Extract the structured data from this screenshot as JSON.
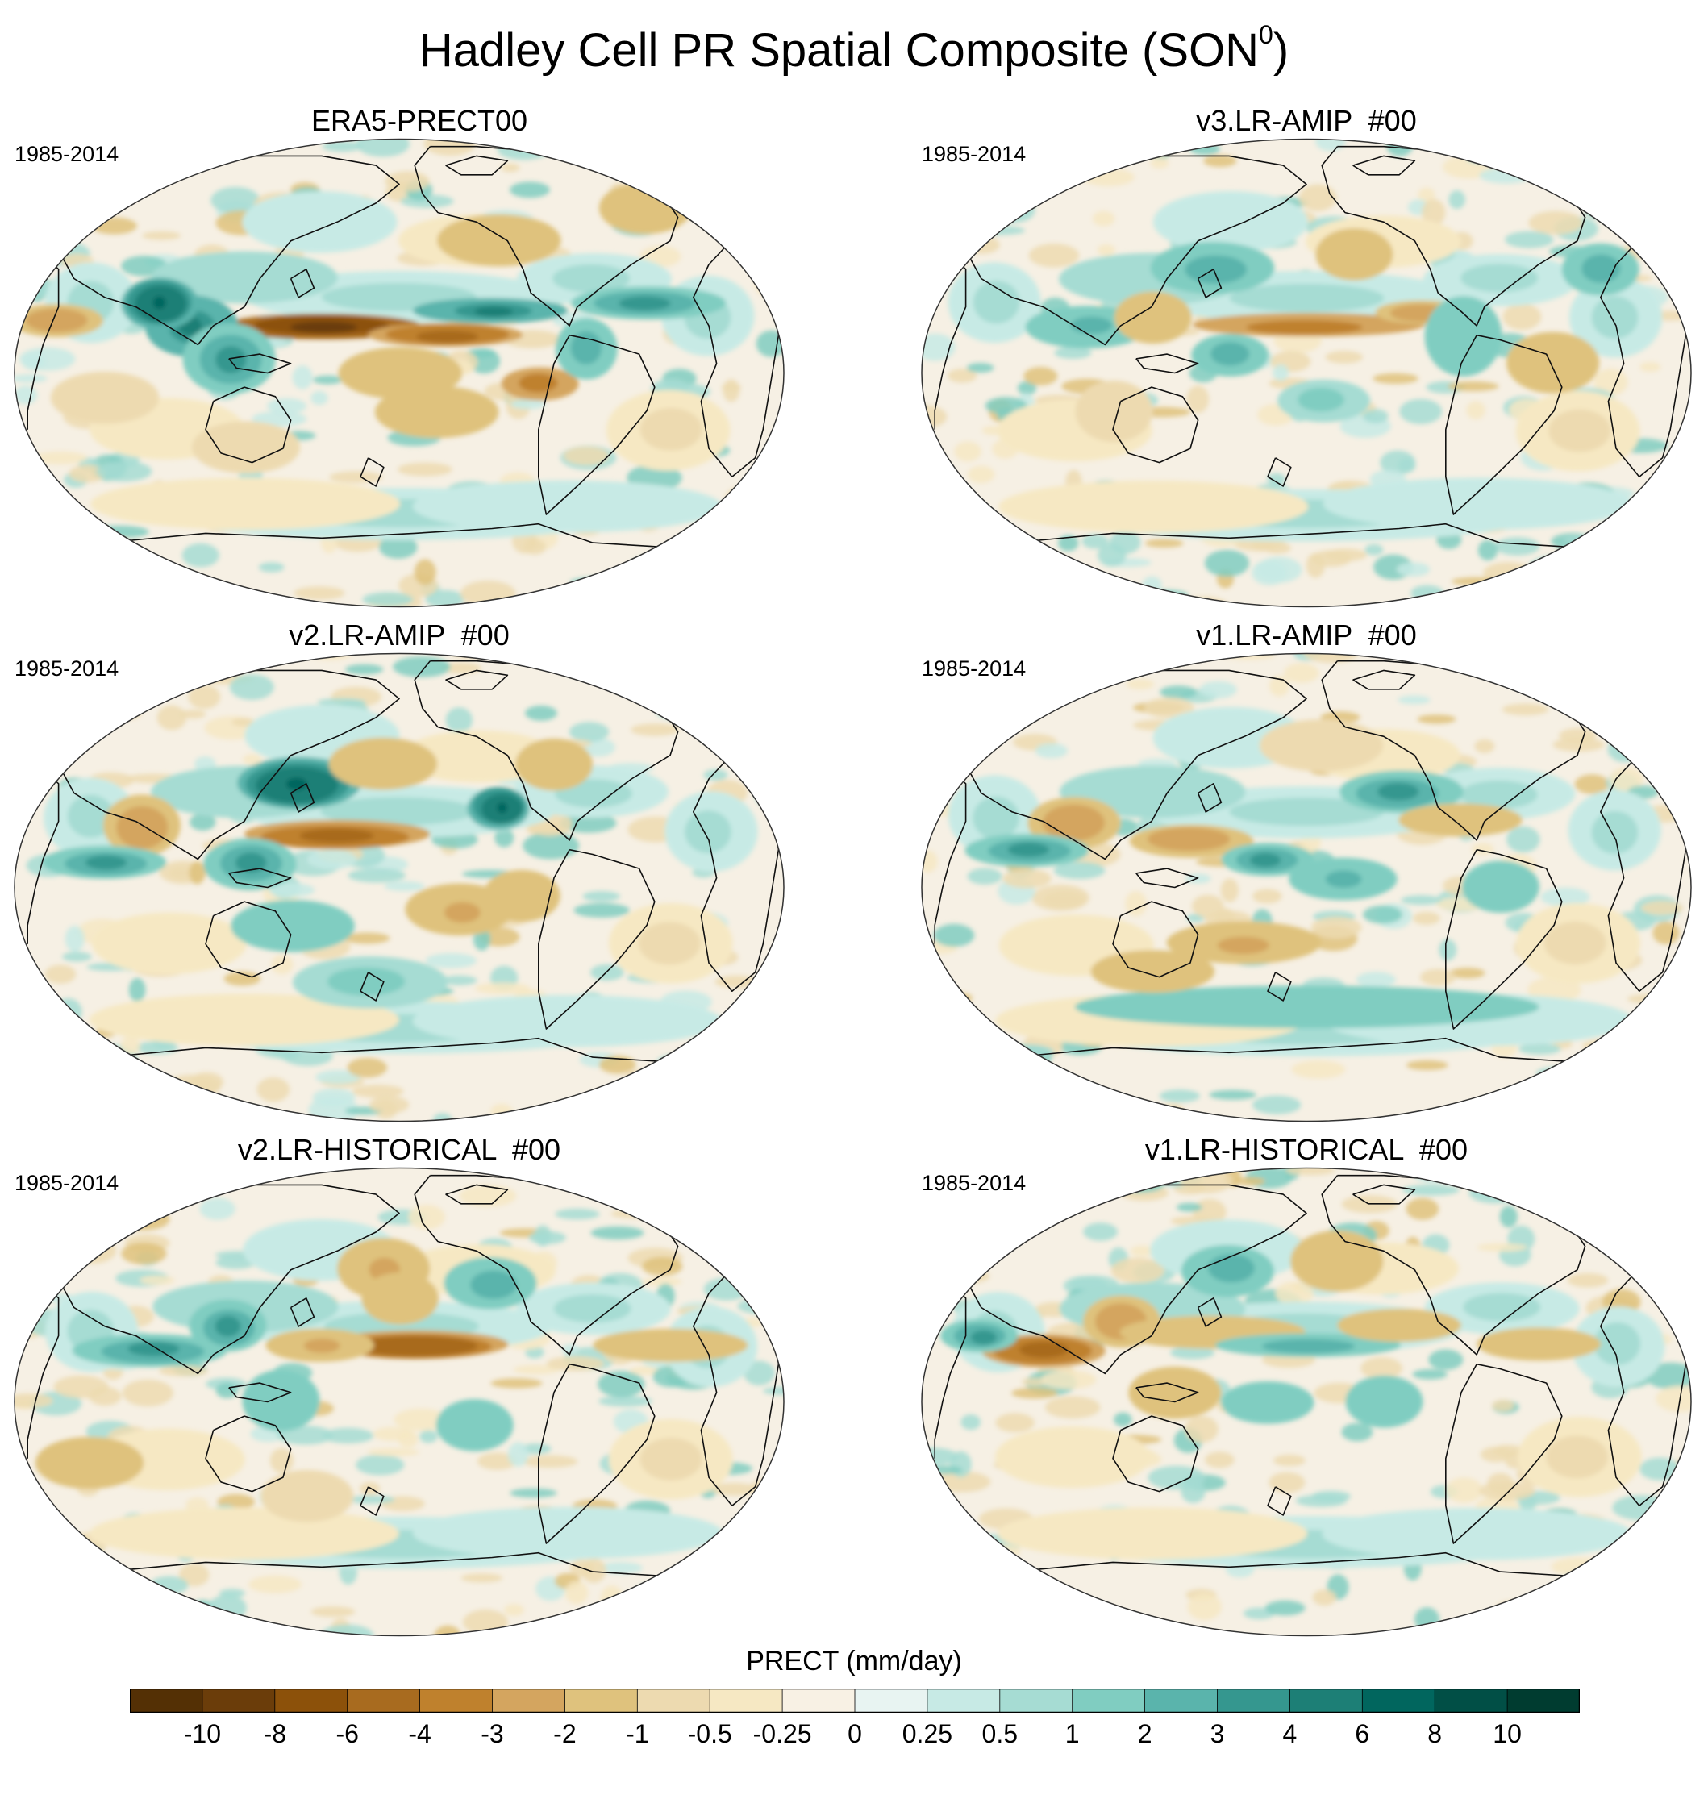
{
  "title": {
    "text": "Hadley Cell PR Spatial Composite (SON",
    "superscript": "0",
    "suffix": ")"
  },
  "panels": [
    {
      "title": "ERA5-PRECT00",
      "period": "1985-2014",
      "pattern": "era5"
    },
    {
      "title": "v3.LR-AMIP  #00",
      "period": "1985-2014",
      "pattern": "v3amip"
    },
    {
      "title": "v2.LR-AMIP  #00",
      "period": "1985-2014",
      "pattern": "v2amip"
    },
    {
      "title": "v1.LR-AMIP  #00",
      "period": "1985-2014",
      "pattern": "v1amip"
    },
    {
      "title": "v2.LR-HISTORICAL  #00",
      "period": "1985-2014",
      "pattern": "v2hist"
    },
    {
      "title": "v1.LR-HISTORICAL  #00",
      "period": "1985-2014",
      "pattern": "v1hist"
    }
  ],
  "colorbar": {
    "title": "PRECT (mm/day)",
    "tick_labels": [
      "-10",
      "-8",
      "-6",
      "-4",
      "-3",
      "-2",
      "-1",
      "-0.5",
      "-0.25",
      "0",
      "0.25",
      "0.5",
      "1",
      "2",
      "3",
      "4",
      "6",
      "8",
      "10"
    ],
    "colors": [
      "#543005",
      "#6b3d0a",
      "#8c510a",
      "#a86b1f",
      "#bf812d",
      "#d4a55f",
      "#dfc27d",
      "#eddab0",
      "#f6e8c3",
      "#f8f1e4",
      "#e8f4f2",
      "#c7eae5",
      "#a6dcd3",
      "#80cdc1",
      "#5ab4ac",
      "#35978f",
      "#1d7f76",
      "#01665e",
      "#014f46",
      "#003c30"
    ]
  }
}
